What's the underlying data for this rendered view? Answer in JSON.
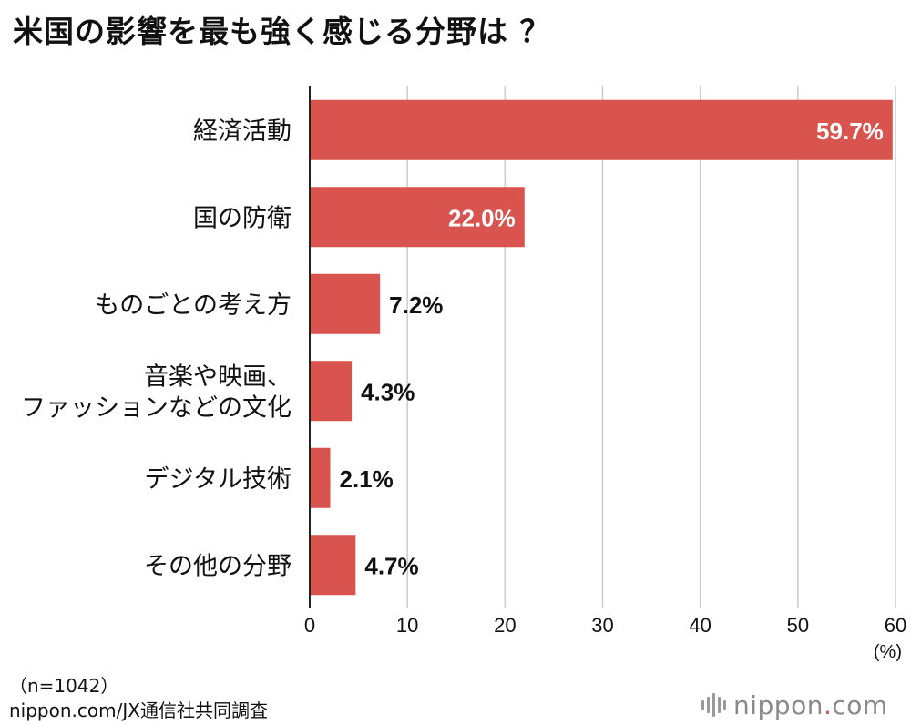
{
  "title": "米国の影響を最も強く感じる分野は ？",
  "footer": {
    "sample": "（n=1042）",
    "source": "nippon.com/JX通信社共同調査"
  },
  "logo": {
    "brand": "nippon",
    "dot": ".",
    "tld": "com"
  },
  "colors": {
    "bar": "#d9534f",
    "grid": "#cccccc",
    "axis": "#222222"
  },
  "chart_data": {
    "type": "bar",
    "orientation": "horizontal",
    "categories": [
      [
        "経済活動"
      ],
      [
        "国の防衛"
      ],
      [
        "ものごとの考え方"
      ],
      [
        "音楽や映画、",
        "ファッションなどの文化"
      ],
      [
        "デジタル技術"
      ],
      [
        "その他の分野"
      ]
    ],
    "values": [
      59.7,
      22.0,
      7.2,
      4.3,
      2.1,
      4.7
    ],
    "value_labels": [
      "59.7%",
      "22.0%",
      "7.2%",
      "4.3%",
      "2.1%",
      "4.7%"
    ],
    "xlim": [
      0,
      60
    ],
    "xticks": [
      0,
      10,
      20,
      30,
      40,
      50,
      60
    ],
    "unit": "(%)",
    "grid": true
  }
}
